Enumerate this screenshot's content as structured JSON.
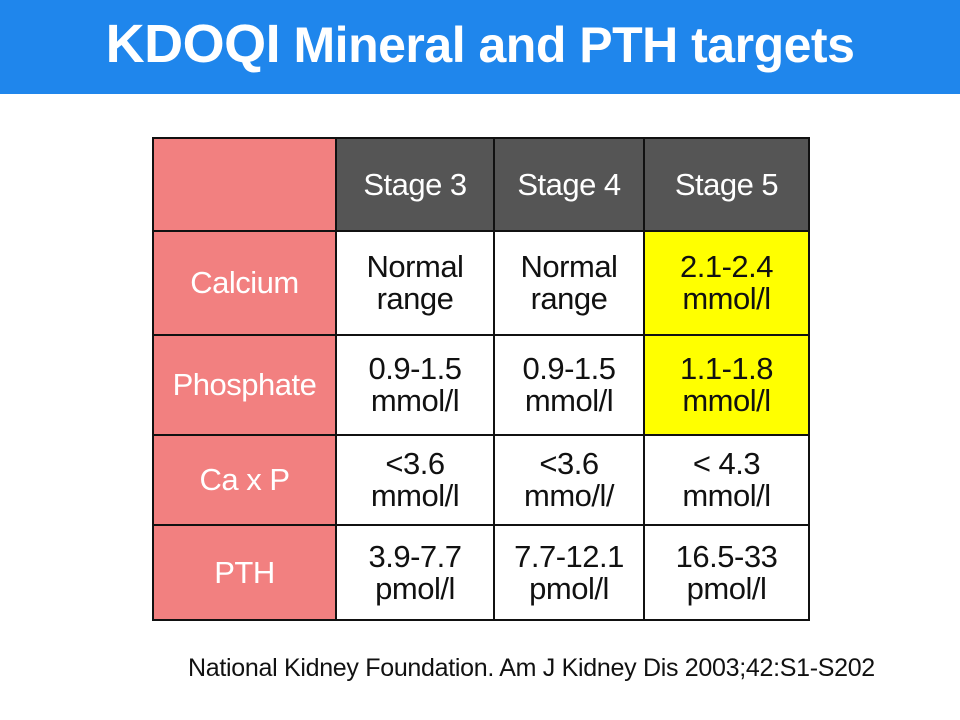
{
  "title": {
    "lead": "KDOQI",
    "rest": " Mineral and PTH targets"
  },
  "colors": {
    "title_bar": "#1f86ec",
    "row_header": "#f28080",
    "column_header": "#555555",
    "highlight": "#ffff00"
  },
  "table": {
    "columns": [
      "Stage 3",
      "Stage 4",
      "Stage 5"
    ],
    "rows": [
      {
        "label": "Calcium",
        "cells": [
          {
            "line1": "Normal",
            "line2": "range"
          },
          {
            "line1": "Normal",
            "line2": "range"
          },
          {
            "line1": "2.1-2.4",
            "line2": "mmol/l"
          }
        ]
      },
      {
        "label": "Phosphate",
        "cells": [
          {
            "line1": "0.9-1.5",
            "line2": "mmol/l"
          },
          {
            "line1": "0.9-1.5",
            "line2": "mmol/l"
          },
          {
            "line1": "1.1-1.8",
            "line2": "mmol/l"
          }
        ]
      },
      {
        "label": "Ca x P",
        "cells": [
          {
            "line1": "<3.6",
            "line2": "mmol/l"
          },
          {
            "line1": "<3.6",
            "line2": "mmo/l/"
          },
          {
            "line1": "< 4.3",
            "line2": "mmol/l"
          }
        ]
      },
      {
        "label": "PTH",
        "cells": [
          {
            "line1": "3.9-7.7",
            "line2": "pmol/l"
          },
          {
            "line1": "7.7-12.1",
            "line2": "pmol/l"
          },
          {
            "line1": "16.5-33",
            "line2": "pmol/l"
          }
        ]
      }
    ]
  },
  "citation": "National Kidney Foundation. Am J Kidney Dis 2003;42:S1-S202"
}
